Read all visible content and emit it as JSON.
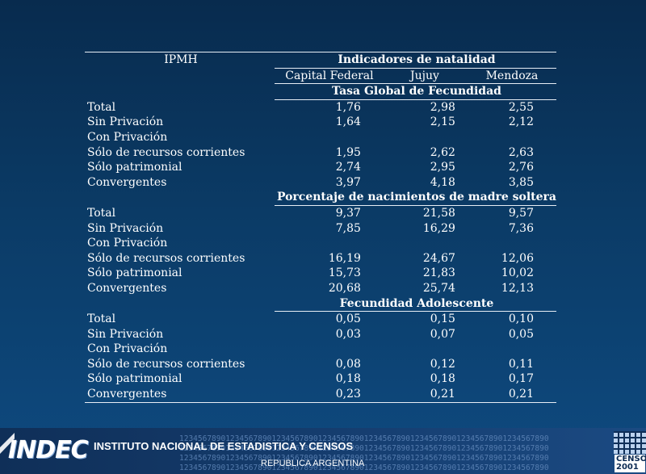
{
  "table": {
    "col_ipmh": "IPMH",
    "header_group": "Indicadores de natalidad",
    "columns": [
      "Capital Federal",
      "Jujuy",
      "Mendoza"
    ],
    "sections": [
      {
        "title": "Tasa Global de Fecundidad",
        "rows": [
          {
            "label": "Total",
            "values": [
              "1,76",
              "2,98",
              "2,55"
            ]
          },
          {
            "label": "Sin Privación",
            "values": [
              "1,64",
              "2,15",
              "2,12"
            ]
          },
          {
            "label": "Con Privación",
            "values": [
              "",
              "",
              ""
            ]
          },
          {
            "label": "Sólo de recursos corrientes",
            "values": [
              "1,95",
              "2,62",
              "2,63"
            ]
          },
          {
            "label": "Sólo patrimonial",
            "values": [
              "2,74",
              "2,95",
              "2,76"
            ]
          },
          {
            "label": "Convergentes",
            "values": [
              "3,97",
              "4,18",
              "3,85"
            ]
          }
        ]
      },
      {
        "title": "Porcentaje de nacimientos de madre soltera",
        "rows": [
          {
            "label": "Total",
            "values": [
              "9,37",
              "21,58",
              "9,57"
            ]
          },
          {
            "label": "Sin Privación",
            "values": [
              "7,85",
              "16,29",
              "7,36"
            ]
          },
          {
            "label": "Con Privación",
            "values": [
              "",
              "",
              ""
            ]
          },
          {
            "label": "Sólo de recursos corrientes",
            "values": [
              "16,19",
              "24,67",
              "12,06"
            ]
          },
          {
            "label": "Sólo patrimonial",
            "values": [
              "15,73",
              "21,83",
              "10,02"
            ]
          },
          {
            "label": "Convergentes",
            "values": [
              "20,68",
              "25,74",
              "12,13"
            ]
          }
        ]
      },
      {
        "title": "Fecundidad Adolescente",
        "rows": [
          {
            "label": "Total",
            "values": [
              "0,05",
              "0,15",
              "0,10"
            ]
          },
          {
            "label": "Sin Privación",
            "values": [
              "0,03",
              "0,07",
              "0,05"
            ]
          },
          {
            "label": "Con Privación",
            "values": [
              "",
              "",
              ""
            ]
          },
          {
            "label": "Sólo de recursos corrientes",
            "values": [
              "0,08",
              "0,12",
              "0,11"
            ]
          },
          {
            "label": "Sólo patrimonial",
            "values": [
              "0,18",
              "0,18",
              "0,17"
            ]
          },
          {
            "label": "Convergentes",
            "values": [
              "0,23",
              "0,21",
              "0,21"
            ]
          }
        ]
      }
    ]
  },
  "footer": {
    "logo_text": "INDEC",
    "institute": "INSTITUTO NACIONAL DE ESTADISTICA Y CENSOS",
    "country": "REPUBLICA ARGENTINA",
    "digit_pattern": "12345678901234567890123456789012345678901234567890123456789012345678901234567890",
    "censo_label": "CENSO",
    "censo_year": "2001"
  },
  "colors": {
    "background_top": "#082b4e",
    "background_bottom": "#0e4a80",
    "text": "#ffffff",
    "rule": "#e8eef5"
  }
}
